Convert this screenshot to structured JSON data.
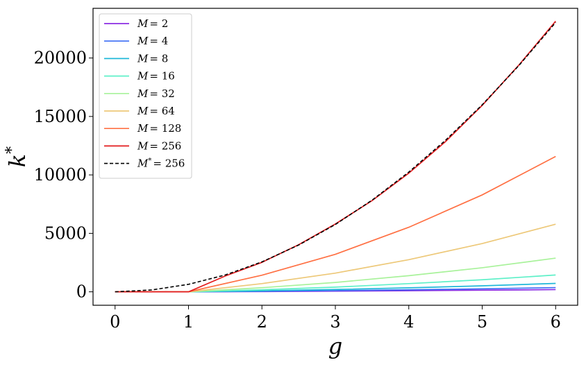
{
  "chart_data": {
    "type": "line",
    "xlabel": "g",
    "ylabel": "k*",
    "xlim": [
      -0.3,
      6.3
    ],
    "ylim": [
      -1150,
      24250
    ],
    "x_ticks": [
      0,
      1,
      2,
      3,
      4,
      5,
      6
    ],
    "y_ticks": [
      0,
      5000,
      10000,
      15000,
      20000
    ],
    "grid": false,
    "legend_position": "upper-left",
    "series": [
      {
        "name": "M = 2",
        "name_sym": "M",
        "name_val": "= 2",
        "color": "#8b2be2",
        "style": "solid",
        "x": [
          0,
          1,
          2,
          3,
          4,
          5,
          6
        ],
        "y": [
          0,
          0,
          22,
          55,
          95,
          140,
          190
        ]
      },
      {
        "name": "M = 4",
        "name_sym": "M",
        "name_val": "= 4",
        "color": "#3b6cf5",
        "style": "solid",
        "x": [
          0,
          1,
          2,
          3,
          4,
          5,
          6
        ],
        "y": [
          0,
          0,
          45,
          100,
          170,
          255,
          360
        ]
      },
      {
        "name": "M = 8",
        "name_sym": "M",
        "name_val": "= 8",
        "color": "#20b8d8",
        "style": "solid",
        "x": [
          0,
          1,
          2,
          3,
          4,
          5,
          6
        ],
        "y": [
          0,
          0,
          90,
          200,
          340,
          510,
          720
        ]
      },
      {
        "name": "M = 16",
        "name_sym": "M",
        "name_val": "= 16",
        "color": "#5ef0c8",
        "style": "solid",
        "x": [
          0,
          1,
          2,
          3,
          4,
          5,
          6
        ],
        "y": [
          0,
          0,
          175,
          400,
          700,
          1030,
          1440
        ]
      },
      {
        "name": "M = 32",
        "name_sym": "M",
        "name_val": "= 32",
        "color": "#a8f29a",
        "style": "solid",
        "x": [
          0,
          1,
          2,
          3,
          4,
          5,
          6
        ],
        "y": [
          0,
          0,
          350,
          800,
          1380,
          2060,
          2880
        ]
      },
      {
        "name": "M = 64",
        "name_sym": "M",
        "name_val": "= 64",
        "color": "#edc878",
        "style": "solid",
        "x": [
          0,
          1,
          2,
          3,
          4,
          5,
          6
        ],
        "y": [
          0,
          0,
          700,
          1600,
          2750,
          4130,
          5780
        ]
      },
      {
        "name": "M = 128",
        "name_sym": "M",
        "name_val": "= 128",
        "color": "#ff7043",
        "style": "solid",
        "x": [
          0,
          1,
          2,
          3,
          4,
          5,
          6
        ],
        "y": [
          0,
          0,
          1420,
          3210,
          5520,
          8290,
          11580
        ]
      },
      {
        "name": "M = 256",
        "name_sym": "M",
        "name_val": "= 256",
        "color": "#e31a1c",
        "style": "solid",
        "x": [
          0,
          1,
          1.5,
          2,
          2.5,
          3,
          3.5,
          4,
          4.5,
          5,
          5.5,
          6
        ],
        "y": [
          0,
          0,
          1350,
          2520,
          4030,
          5800,
          7800,
          10150,
          12850,
          15950,
          19400,
          23150
        ]
      },
      {
        "name": "M* = 256",
        "name_sym": "M",
        "name_sup": "*",
        "name_val": "= 256",
        "color": "#000000",
        "style": "dashed",
        "x": [
          0,
          0.5,
          1,
          1.5,
          2,
          2.5,
          3,
          3.5,
          4,
          4.5,
          5,
          5.5,
          6
        ],
        "y": [
          0,
          160,
          640,
          1440,
          2560,
          4000,
          5760,
          7840,
          10240,
          12960,
          16000,
          19360,
          23040
        ]
      }
    ]
  }
}
